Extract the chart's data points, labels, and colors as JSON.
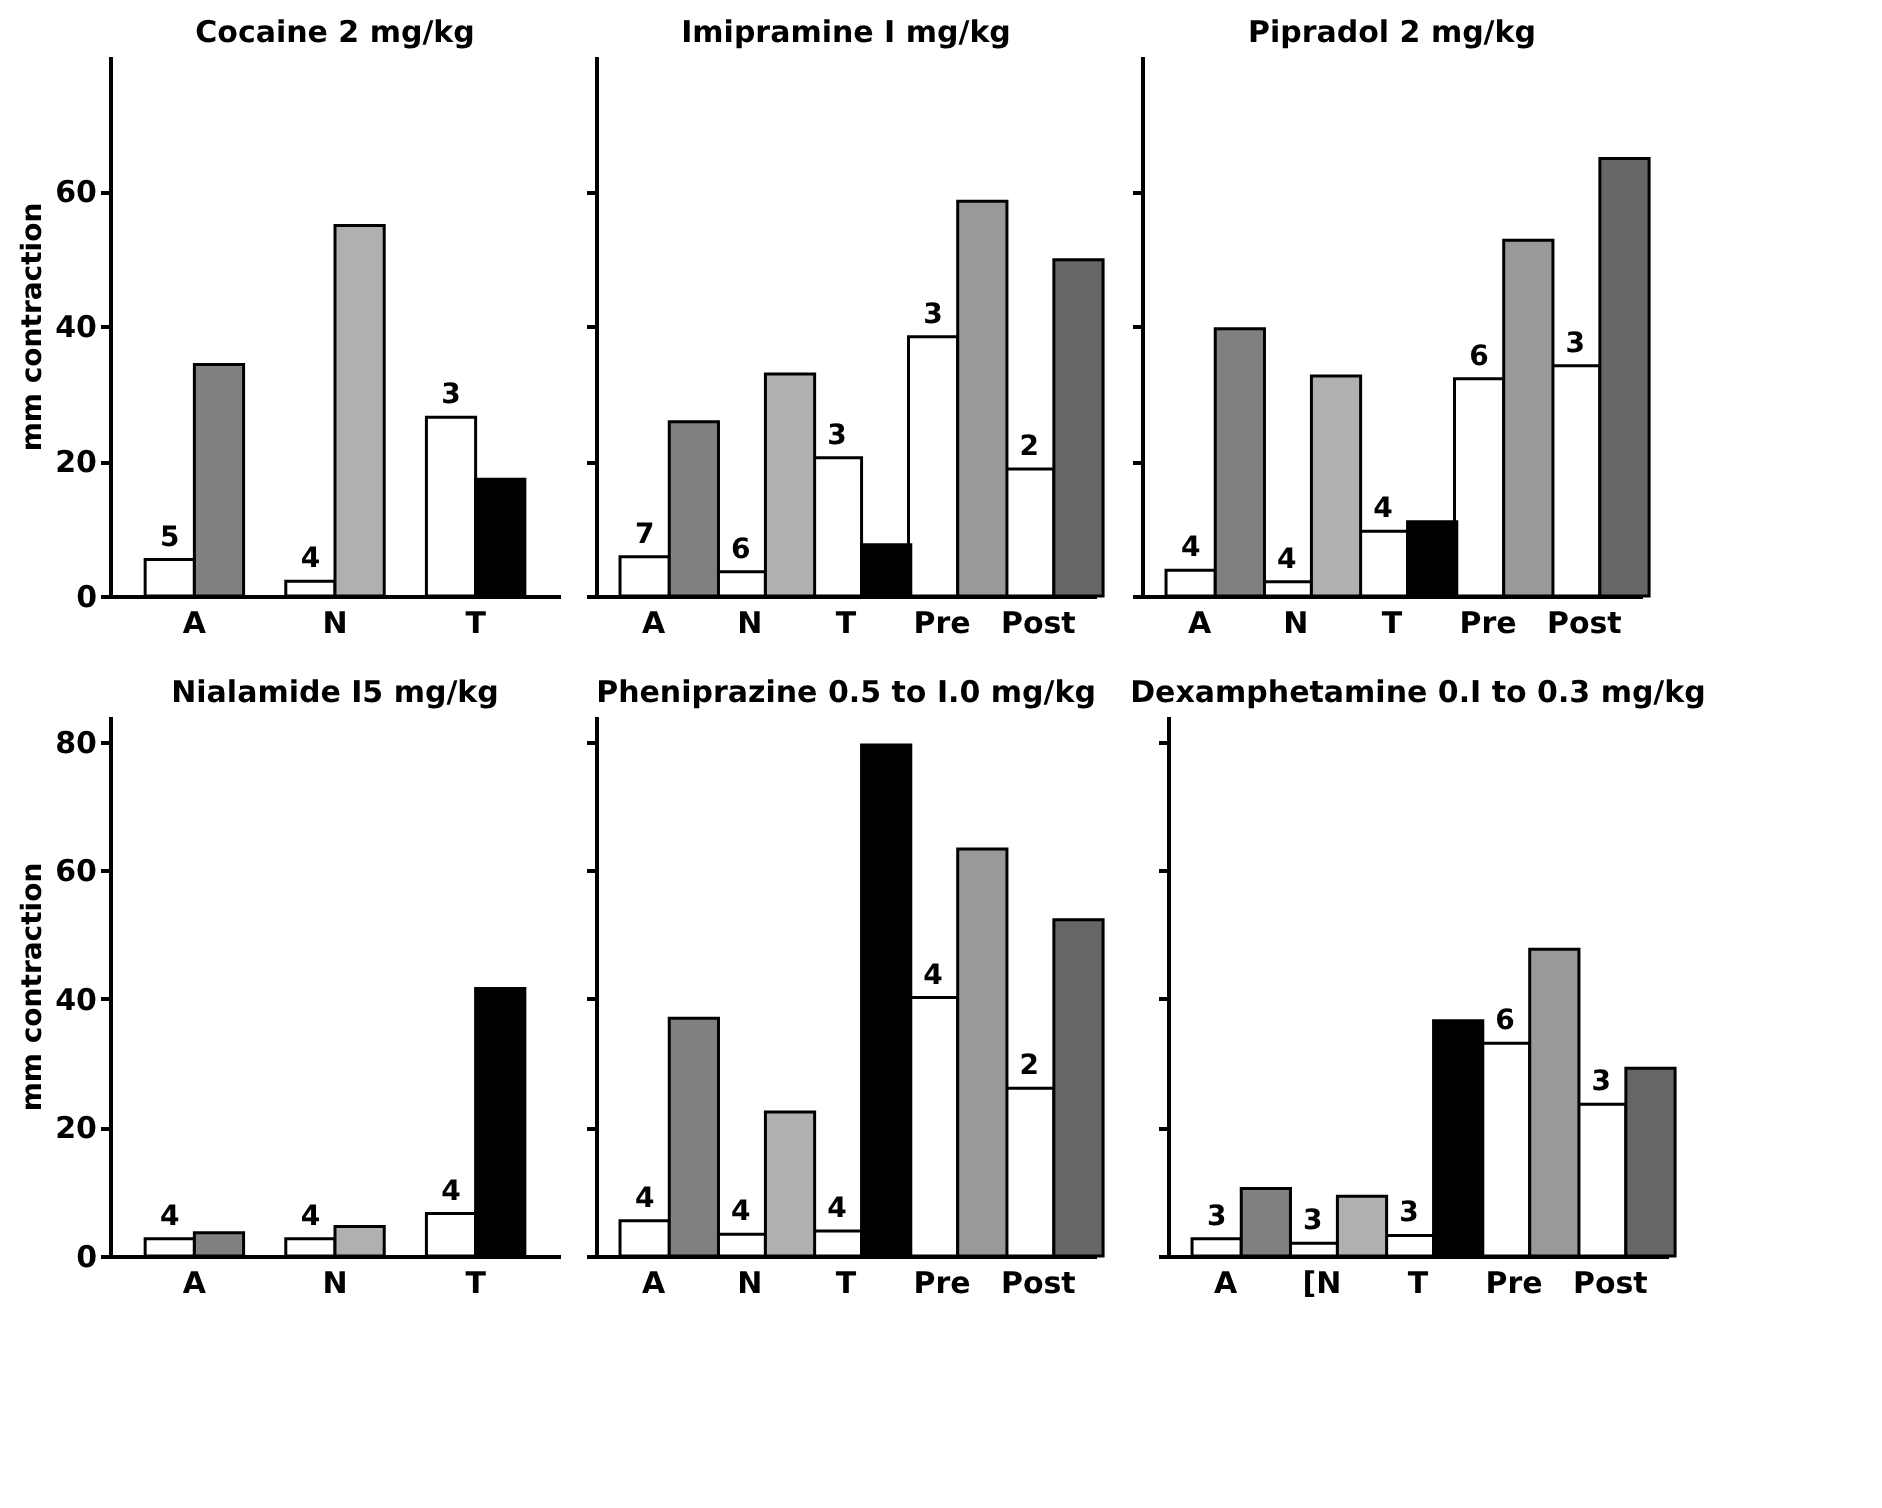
{
  "chart_data": [
    {
      "type": "bar",
      "title": "Cocaine 2 mg/kg",
      "ylabel": "mm contraction",
      "categories": [
        "A",
        "N",
        "T"
      ],
      "ylim": [
        0,
        80
      ],
      "yticks": [
        0,
        20,
        40,
        60
      ],
      "series": [
        {
          "color": "#ffffff",
          "values": [
            5.4,
            2.2,
            26.5
          ]
        },
        {
          "colors": [
            "#808080",
            "#b0b0b0",
            "#000000"
          ],
          "values": [
            34.3,
            54.9,
            17.3
          ]
        }
      ],
      "annotations": [
        {
          "text": "5",
          "x": "A",
          "y": 5.4
        },
        {
          "text": "4",
          "x": "N",
          "y": 2.2
        },
        {
          "text": "3",
          "x": "T",
          "y": 26.5
        }
      ]
    },
    {
      "type": "bar",
      "title": "Imipramine I mg/kg",
      "categories": [
        "A",
        "N",
        "T",
        "Pre",
        "Post"
      ],
      "ylim": [
        0,
        80
      ],
      "yticks": [
        0,
        20,
        40,
        60
      ],
      "tick_labels": "x",
      "series": [
        {
          "color": "#ffffff",
          "values": [
            5.8,
            3.6,
            20.5,
            38.4,
            18.8
          ]
        },
        {
          "colors": [
            "#808080",
            "#b0b0b0",
            "#000000",
            "#999999",
            "#666666"
          ],
          "values": [
            25.8,
            32.9,
            7.6,
            58.5,
            49.8
          ]
        }
      ],
      "annotations": [
        {
          "text": "7",
          "x": "A",
          "y": 5.8
        },
        {
          "text": "6",
          "x": "N",
          "y": 3.6
        },
        {
          "text": "3",
          "x": "T",
          "y": 20.5
        },
        {
          "text": "3",
          "x": "Pre",
          "y": 38.4
        },
        {
          "text": "2",
          "x": "Post",
          "y": 18.8
        }
      ]
    },
    {
      "type": "bar",
      "title": "Pipradol 2 mg/kg",
      "categories": [
        "A",
        "N",
        "T",
        "Pre",
        "Post"
      ],
      "ylim": [
        0,
        80
      ],
      "yticks": [
        0,
        20,
        40,
        60
      ],
      "tick_labels": "x",
      "series": [
        {
          "color": "#ffffff",
          "values": [
            3.8,
            2.1,
            9.6,
            32.2,
            34.1
          ]
        },
        {
          "colors": [
            "#808080",
            "#b0b0b0",
            "#000000",
            "#999999",
            "#666666"
          ],
          "values": [
            39.6,
            32.6,
            11.0,
            52.7,
            64.8
          ]
        }
      ],
      "annotations": [
        {
          "text": "4",
          "x": "A",
          "y": 3.8
        },
        {
          "text": "4",
          "x": "N",
          "y": 2.1
        },
        {
          "text": "4",
          "x": "T",
          "y": 9.6
        },
        {
          "text": "6",
          "x": "Pre",
          "y": 32.2
        },
        {
          "text": "3",
          "x": "Post",
          "y": 34.1
        }
      ]
    },
    {
      "type": "bar",
      "title": "Nialamide I5 mg/kg",
      "ylabel": "mm contraction",
      "categories": [
        "A",
        "N",
        "T"
      ],
      "ylim": [
        0,
        84
      ],
      "yticks": [
        0,
        20,
        40,
        60,
        80
      ],
      "series": [
        {
          "color": "#ffffff",
          "values": [
            2.7,
            2.7,
            6.6
          ]
        },
        {
          "colors": [
            "#808080",
            "#b0b0b0",
            "#000000"
          ],
          "values": [
            3.6,
            4.6,
            41.6
          ]
        }
      ],
      "annotations": [
        {
          "text": "4",
          "x": "A",
          "y": 2.7
        },
        {
          "text": "4",
          "x": "N",
          "y": 2.7
        },
        {
          "text": "4",
          "x": "T",
          "y": 6.6
        }
      ]
    },
    {
      "type": "bar",
      "title": "Pheniprazine 0.5 to I.0 mg/kg",
      "categories": [
        "A",
        "N",
        "T",
        "Pre",
        "Post"
      ],
      "ylim": [
        0,
        84
      ],
      "yticks": [
        0,
        20,
        40,
        60,
        80
      ],
      "tick_labels": "x",
      "series": [
        {
          "color": "#ffffff",
          "values": [
            5.5,
            3.4,
            3.9,
            40.2,
            26.1
          ]
        },
        {
          "colors": [
            "#808080",
            "#b0b0b0",
            "#000000",
            "#999999",
            "#666666"
          ],
          "values": [
            37.0,
            22.4,
            79.5,
            63.3,
            52.3
          ]
        }
      ],
      "annotations": [
        {
          "text": "4",
          "x": "A",
          "y": 5.5
        },
        {
          "text": "4",
          "x": "N",
          "y": 3.4
        },
        {
          "text": "4",
          "x": "T",
          "y": 3.9
        },
        {
          "text": "4",
          "x": "Pre",
          "y": 40.2
        },
        {
          "text": "2",
          "x": "Post",
          "y": 26.1
        }
      ]
    },
    {
      "type": "bar",
      "title": "Dexamphetamine 0.I to 0.3 mg/kg",
      "categories": [
        "A",
        "[N",
        "T",
        "Pre",
        "Post"
      ],
      "ylim": [
        0,
        84
      ],
      "yticks": [
        0,
        20,
        40,
        60,
        80
      ],
      "tick_labels": "x",
      "series": [
        {
          "color": "#ffffff",
          "values": [
            2.7,
            2.0,
            3.2,
            33.1,
            23.6
          ]
        },
        {
          "colors": [
            "#808080",
            "#b0b0b0",
            "#000000",
            "#999999",
            "#666666"
          ],
          "values": [
            10.5,
            9.3,
            36.6,
            47.7,
            29.2
          ]
        }
      ],
      "annotations": [
        {
          "text": "3",
          "x": "A",
          "y": 2.7
        },
        {
          "text": "3",
          "x": "[N",
          "y": 2.0
        },
        {
          "text": "3",
          "x": "T",
          "y": 3.2
        },
        {
          "text": "6",
          "x": "Pre",
          "y": 33.1
        },
        {
          "text": "3",
          "x": "Post",
          "y": 23.6
        }
      ]
    }
  ]
}
